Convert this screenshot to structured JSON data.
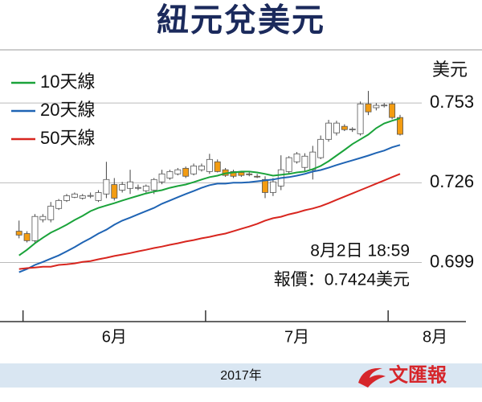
{
  "chart_data": {
    "type": "candlestick",
    "title": "紐元兌美元",
    "y_unit": "美元",
    "annotations": [
      "8月2日 18:59",
      "報價：0.7424美元"
    ],
    "footer": "2017年",
    "logo": "文匯報",
    "ylim": [
      0.679,
      0.771
    ],
    "yticks": [
      0.699,
      0.726,
      0.753
    ],
    "grid": true,
    "xlim": [
      -2.4,
      56.3
    ],
    "xticks": [
      {
        "value": 1,
        "label": "6月"
      },
      {
        "value": 24,
        "label": "7月"
      },
      {
        "value": 47,
        "label": "8月"
      }
    ],
    "up_color": "#ffffff",
    "down_color": "#f39c12",
    "open": [
      0.7096,
      0.7088,
      0.7064,
      0.7135,
      0.7135,
      0.7173,
      0.72,
      0.7211,
      0.7208,
      0.7216,
      0.72,
      0.7222,
      0.7254,
      0.7235,
      0.7241,
      0.7243,
      0.7233,
      0.7235,
      0.7263,
      0.7276,
      0.729,
      0.7309,
      0.729,
      0.7304,
      0.7298,
      0.7331,
      0.7304,
      0.7298,
      0.7295,
      0.729,
      0.7282,
      0.7271,
      0.7227,
      0.7249,
      0.7298,
      0.7331,
      0.7312,
      0.7304,
      0.7345,
      0.7407,
      0.7429,
      0.7451,
      0.744,
      0.7426,
      0.7527,
      0.7514,
      0.7522,
      0.7527,
      0.7481
    ],
    "high": [
      0.7132,
      0.7096,
      0.7154,
      0.7154,
      0.7195,
      0.7205,
      0.7222,
      0.7227,
      0.7222,
      0.7227,
      0.7235,
      0.7331,
      0.7276,
      0.7263,
      0.7304,
      0.7254,
      0.7254,
      0.7276,
      0.7304,
      0.7304,
      0.731,
      0.7315,
      0.7325,
      0.7325,
      0.7358,
      0.7339,
      0.731,
      0.7304,
      0.73,
      0.7298,
      0.729,
      0.7282,
      0.7276,
      0.7353,
      0.735,
      0.7364,
      0.736,
      0.7385,
      0.742,
      0.7473,
      0.747,
      0.7458,
      0.7448,
      0.7535,
      0.7571,
      0.753,
      0.753,
      0.7535,
      0.749
    ],
    "low": [
      0.7072,
      0.7058,
      0.7058,
      0.7126,
      0.7126,
      0.7168,
      0.7195,
      0.7208,
      0.7203,
      0.7208,
      0.7195,
      0.7208,
      0.72,
      0.7227,
      0.7222,
      0.7235,
      0.7227,
      0.7222,
      0.7255,
      0.727,
      0.7285,
      0.7276,
      0.7285,
      0.7298,
      0.729,
      0.7295,
      0.728,
      0.7276,
      0.728,
      0.7282,
      0.7276,
      0.7208,
      0.7215,
      0.7235,
      0.729,
      0.7325,
      0.73,
      0.7271,
      0.734,
      0.7399,
      0.742,
      0.7435,
      0.7432,
      0.742,
      0.7489,
      0.7505,
      0.7515,
      0.7475,
      0.742
    ],
    "close": [
      0.7083,
      0.7064,
      0.7146,
      0.7146,
      0.7181,
      0.72,
      0.7216,
      0.7222,
      0.7216,
      0.7217,
      0.7227,
      0.7271,
      0.7208,
      0.7254,
      0.7263,
      0.7244,
      0.7249,
      0.7271,
      0.729,
      0.7298,
      0.7304,
      0.7282,
      0.7317,
      0.7317,
      0.7339,
      0.7298,
      0.7285,
      0.7282,
      0.7285,
      0.7289,
      0.7281,
      0.7227,
      0.7263,
      0.7304,
      0.7345,
      0.7358,
      0.735,
      0.7364,
      0.7407,
      0.7462,
      0.7462,
      0.744,
      0.7442,
      0.7527,
      0.75,
      0.7522,
      0.7523,
      0.7481,
      0.7424
    ],
    "series": [
      {
        "name": "10天線",
        "color": "#1aa33a",
        "values": [
          0.7014,
          0.7033,
          0.7055,
          0.7074,
          0.7091,
          0.7104,
          0.7118,
          0.7134,
          0.7148,
          0.7164,
          0.7175,
          0.7183,
          0.7191,
          0.72,
          0.7208,
          0.7216,
          0.7224,
          0.723,
          0.7235,
          0.7243,
          0.7249,
          0.7254,
          0.7262,
          0.7271,
          0.7279,
          0.7284,
          0.7292,
          0.7295,
          0.7298,
          0.7298,
          0.7295,
          0.729,
          0.7284,
          0.7287,
          0.729,
          0.7295,
          0.7298,
          0.7306,
          0.7317,
          0.7333,
          0.7352,
          0.7371,
          0.7391,
          0.7407,
          0.7423,
          0.7445,
          0.7461,
          0.747,
          0.7478
        ]
      },
      {
        "name": "20天線",
        "color": "#1f64b4",
        "values": [
          0.6957,
          0.6968,
          0.6982,
          0.6992,
          0.7003,
          0.7014,
          0.7028,
          0.7042,
          0.7058,
          0.7072,
          0.7088,
          0.7101,
          0.7118,
          0.7132,
          0.7142,
          0.7153,
          0.7164,
          0.7175,
          0.7189,
          0.72,
          0.7211,
          0.7222,
          0.7232,
          0.7243,
          0.7252,
          0.7257,
          0.7257,
          0.726,
          0.726,
          0.7262,
          0.7265,
          0.7268,
          0.7271,
          0.7276,
          0.7279,
          0.7284,
          0.729,
          0.7298,
          0.7303,
          0.7311,
          0.732,
          0.7328,
          0.7336,
          0.7344,
          0.7352,
          0.7361,
          0.7369,
          0.738,
          0.7388
        ]
      },
      {
        "name": "50天線",
        "color": "#d8261f",
        "values": [
          0.6968,
          0.6971,
          0.6973,
          0.6976,
          0.6976,
          0.6982,
          0.6984,
          0.6987,
          0.6992,
          0.6995,
          0.7001,
          0.7006,
          0.7012,
          0.7017,
          0.7022,
          0.7028,
          0.7033,
          0.7039,
          0.7044,
          0.705,
          0.7055,
          0.7061,
          0.7066,
          0.7072,
          0.7077,
          0.7083,
          0.7088,
          0.7096,
          0.7104,
          0.7112,
          0.7121,
          0.7132,
          0.714,
          0.7145,
          0.7153,
          0.7159,
          0.7167,
          0.7173,
          0.7181,
          0.7191,
          0.7202,
          0.7213,
          0.7224,
          0.7235,
          0.7246,
          0.7257,
          0.7268,
          0.7279,
          0.729
        ]
      }
    ]
  }
}
